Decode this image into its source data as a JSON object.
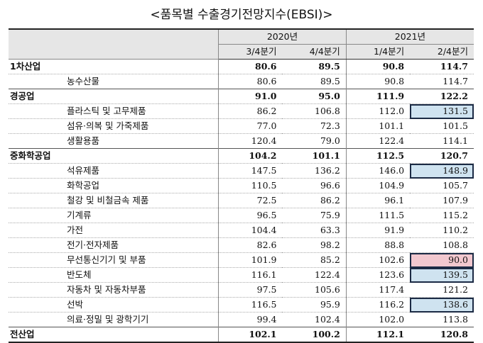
{
  "title": "<품목별 수출경기전망지수(EBSI)>",
  "header": {
    "years": [
      "2020년",
      "2021년"
    ],
    "quarters": [
      "3/4분기",
      "4/4분기",
      "1/4분기",
      "2/4분기"
    ]
  },
  "rows": [
    {
      "name": "1차산업",
      "values": [
        "80.6",
        "89.5",
        "90.8",
        "114.7"
      ]
    },
    {
      "name": "농수산물",
      "values": [
        "80.6",
        "89.5",
        "90.8",
        "114.7"
      ]
    },
    {
      "name": "경공업",
      "values": [
        "91.0",
        "95.0",
        "111.9",
        "122.2"
      ]
    },
    {
      "name": "플라스틱 및 고무제품",
      "values": [
        "86.2",
        "106.8",
        "112.0",
        "131.5"
      ]
    },
    {
      "name": "섬유·의복 및 가죽제품",
      "values": [
        "77.0",
        "72.3",
        "101.1",
        "101.5"
      ]
    },
    {
      "name": "생활용품",
      "values": [
        "120.4",
        "79.0",
        "122.4",
        "114.1"
      ]
    },
    {
      "name": "중화학공업",
      "values": [
        "104.2",
        "101.1",
        "112.5",
        "120.7"
      ]
    },
    {
      "name": "석유제품",
      "values": [
        "147.5",
        "136.2",
        "146.0",
        "148.9"
      ]
    },
    {
      "name": "화학공업",
      "values": [
        "110.5",
        "96.6",
        "104.9",
        "105.7"
      ]
    },
    {
      "name": "철강 및 비철금속 제품",
      "values": [
        "72.5",
        "86.2",
        "96.1",
        "107.9"
      ]
    },
    {
      "name": "기계류",
      "values": [
        "96.5",
        "75.9",
        "111.5",
        "115.2"
      ]
    },
    {
      "name": "가전",
      "values": [
        "104.4",
        "63.3",
        "91.9",
        "110.2"
      ]
    },
    {
      "name": "전기·전자제품",
      "values": [
        "82.6",
        "98.2",
        "88.8",
        "108.8"
      ]
    },
    {
      "name": "무선통신기기 및 부품",
      "values": [
        "101.9",
        "85.2",
        "102.6",
        "90.0"
      ]
    },
    {
      "name": "반도체",
      "values": [
        "116.1",
        "122.4",
        "123.6",
        "139.5"
      ]
    },
    {
      "name": "자동차 및 자동차부품",
      "values": [
        "97.5",
        "105.6",
        "117.4",
        "121.2"
      ]
    },
    {
      "name": "선박",
      "values": [
        "116.5",
        "95.9",
        "116.2",
        "138.6"
      ]
    },
    {
      "name": "의료·정밀 및 광학기기",
      "values": [
        "99.4",
        "102.4",
        "102.0",
        "113.8"
      ]
    },
    {
      "name": "전산업",
      "values": [
        "102.1",
        "100.2",
        "112.1",
        "120.8"
      ]
    }
  ],
  "colors": {
    "highlight_blue": "#cfe3f0",
    "highlight_pink": "#f2c8cf",
    "header_bg": "#e6e6e6"
  }
}
